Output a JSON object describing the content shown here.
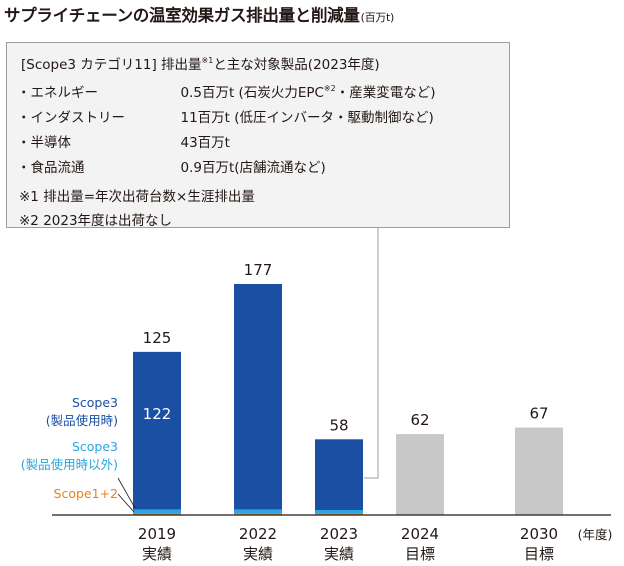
{
  "title": "サプライチェーンの温室効果ガス排出量と削減量",
  "title_unit": "(百万t)",
  "callout": {
    "heading_pre": "[Scope3 カテゴリ11] 排出量",
    "heading_sup": "※1",
    "heading_post": "と主な対象製品(2023年度)",
    "items": [
      {
        "bullet": "・",
        "name": "エネルギー",
        "value_pre": "0.5百万t (石炭火力EPC",
        "value_sup": "※2",
        "value_post": "・産業変電など)"
      },
      {
        "bullet": "・",
        "name": "インダストリー",
        "value_pre": "11百万t (低圧インバータ・駆動制御など)",
        "value_sup": "",
        "value_post": ""
      },
      {
        "bullet": "・",
        "name": "半導体",
        "value_pre": "43百万t",
        "value_sup": "",
        "value_post": ""
      },
      {
        "bullet": "・",
        "name": "食品流通",
        "value_pre": "0.9百万t(店舗流通など)",
        "value_sup": "",
        "value_post": ""
      }
    ],
    "notes": [
      "※1 排出量=年次出荷台数×生涯排出量",
      "※2 2023年度は出荷なし"
    ]
  },
  "colors": {
    "scope3_use": "#1a4fa3",
    "scope3_other": "#2aa6de",
    "scope12": "#e8821e",
    "target": "#c8c8c8",
    "text": "#231815",
    "axis": "#231815",
    "callout_bg": "#f3f3f3",
    "callout_border": "#9d9d9d"
  },
  "chart_data": {
    "type": "bar",
    "stacked": true,
    "categories": [
      "2019\n実績",
      "2022\n実績",
      "2023\n実績",
      "2024\n目標",
      "2030\n目標"
    ],
    "xlabel": "(年度)",
    "ylabel": "",
    "totals": [
      125,
      177,
      58,
      62,
      67
    ],
    "total_labels": [
      "125",
      "177",
      "58",
      "62",
      "67"
    ],
    "series": [
      {
        "name": "Scope3\n(製品使用時)",
        "values": [
          122,
          174,
          56,
          null,
          null
        ],
        "color": "#1a4fa3"
      },
      {
        "name": "Scope3\n(製品使用時以外)",
        "values": [
          2.5,
          2.5,
          1.5,
          null,
          null
        ],
        "color": "#2aa6de"
      },
      {
        "name": "Scope1+2",
        "values": [
          0.5,
          0.5,
          0.5,
          null,
          null
        ],
        "color": "#e8821e"
      },
      {
        "name": "",
        "values": [
          null,
          null,
          null,
          62,
          67
        ],
        "color": "#c8c8c8"
      }
    ],
    "inner_labels": [
      {
        "category": 0,
        "series": 0,
        "text": "122"
      }
    ],
    "ylim": [
      0,
      177
    ],
    "grid": false,
    "legend": "left"
  }
}
